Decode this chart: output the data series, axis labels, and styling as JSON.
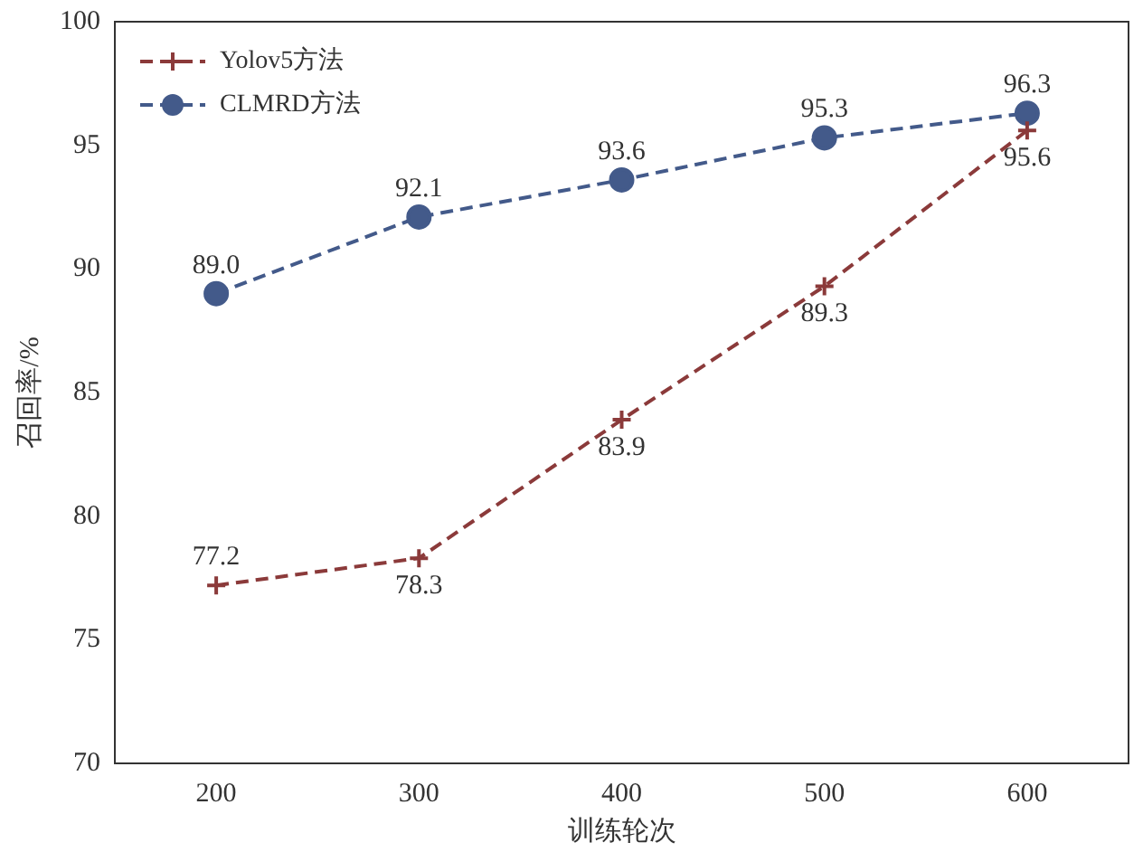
{
  "chart_data": {
    "type": "line",
    "xlabel": "训练轮次",
    "ylabel": "召回率/%",
    "categories": [
      "200",
      "300",
      "400",
      "500",
      "600"
    ],
    "series": [
      {
        "name": "Yolov5方法",
        "color": "#8b3a3a",
        "values": [
          77.2,
          78.3,
          83.9,
          89.3,
          95.6
        ],
        "value_labels": [
          "77.2",
          "78.3",
          "83.9",
          "89.3",
          "95.6"
        ],
        "marker": "cross"
      },
      {
        "name": "CLMRD方法",
        "color": "#435a8a",
        "values": [
          89.0,
          92.1,
          93.6,
          95.3,
          96.3
        ],
        "value_labels": [
          "89.0",
          "92.1",
          "93.6",
          "95.3",
          "96.3"
        ],
        "marker": "circle"
      }
    ],
    "ylim": [
      70,
      100
    ],
    "yticks": [
      70,
      75,
      80,
      85,
      90,
      95,
      100
    ],
    "grid": false,
    "legend": "top left",
    "line_style": "dashed"
  }
}
